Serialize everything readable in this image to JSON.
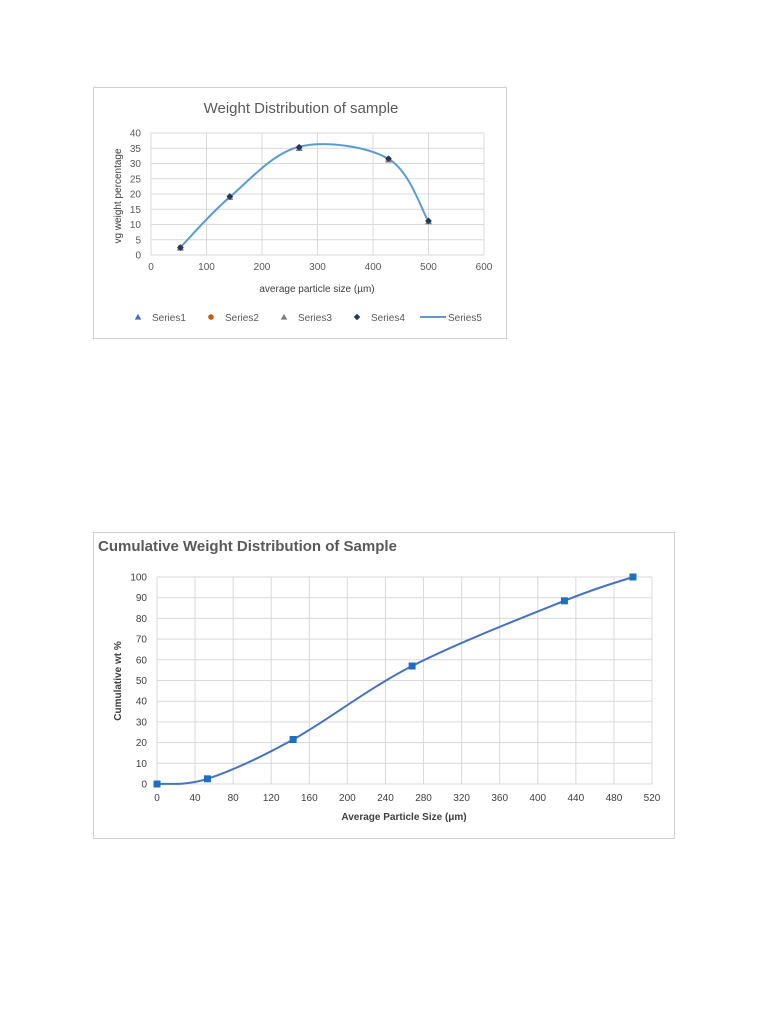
{
  "chart_data": [
    {
      "type": "scatter",
      "title": "Weight Distribution of sample",
      "xlabel": "average particle size (µm)",
      "ylabel": "vg weight percentage",
      "xlim": [
        0,
        600
      ],
      "ylim": [
        0,
        40
      ],
      "xticks": [
        0,
        100,
        200,
        300,
        400,
        500,
        600
      ],
      "yticks": [
        0,
        5,
        10,
        15,
        20,
        25,
        30,
        35,
        40
      ],
      "grid": true,
      "legend_position": "bottom",
      "series": [
        {
          "name": "Series1",
          "marker": "triangle",
          "color": "#4472c4",
          "x": [
            53,
            142,
            267,
            428,
            500
          ],
          "y": [
            2.5,
            19,
            35,
            31.5,
            11
          ]
        },
        {
          "name": "Series2",
          "marker": "circle",
          "color": "#c55a11",
          "x": [
            53,
            142,
            267,
            428,
            500
          ],
          "y": [
            2.5,
            19,
            35.3,
            31.5,
            11
          ]
        },
        {
          "name": "Series3",
          "marker": "triangle",
          "color": "#7f7f7f",
          "x": [
            53,
            142,
            267,
            428,
            500
          ],
          "y": [
            2.3,
            19,
            35,
            31.2,
            11
          ]
        },
        {
          "name": "Series4",
          "marker": "diamond",
          "color": "#203864",
          "x": [
            53,
            142,
            267,
            428,
            500
          ],
          "y": [
            2.4,
            19.2,
            35.3,
            31.6,
            11.2
          ]
        },
        {
          "name": "Series5",
          "marker": "line",
          "color": "#5b9bd5",
          "x": [
            53,
            142,
            267,
            428,
            500
          ],
          "y": [
            2.5,
            19,
            35.5,
            31.5,
            11
          ]
        }
      ]
    },
    {
      "type": "line",
      "title": "Cumulative Weight Distribution of Sample",
      "xlabel": "Average Particle Size (μm)",
      "ylabel": "Cumulative wt %",
      "xlim": [
        0,
        520
      ],
      "ylim": [
        0,
        100
      ],
      "xticks": [
        0,
        40,
        80,
        120,
        160,
        200,
        240,
        280,
        320,
        360,
        400,
        440,
        480,
        520
      ],
      "yticks": [
        0,
        10,
        20,
        30,
        40,
        50,
        60,
        70,
        80,
        90,
        100
      ],
      "grid": true,
      "series": [
        {
          "color": "#4472c4",
          "x": [
            0,
            53,
            143,
            268,
            428,
            500
          ],
          "y": [
            0,
            2.5,
            21.5,
            57,
            88.5,
            100
          ]
        }
      ]
    }
  ]
}
